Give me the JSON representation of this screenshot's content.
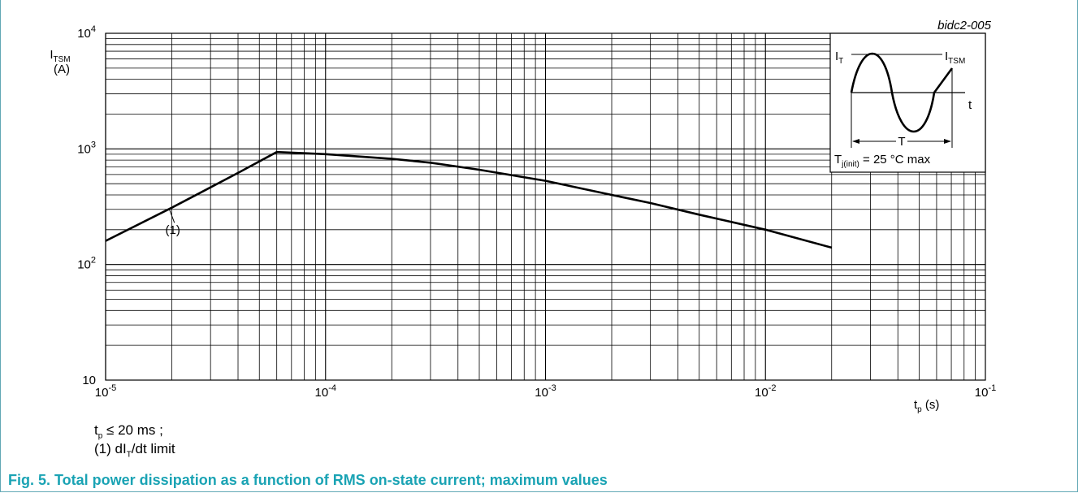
{
  "chart_data": {
    "type": "line",
    "figure_code": "bidc2-005",
    "title": "",
    "xlabel": "t",
    "xlabel_sub": "p",
    "xlabel_unit": " (s)",
    "ylabel": "I",
    "ylabel_sub": "TSM",
    "ylabel_unit": "(A)",
    "xscale": "log",
    "yscale": "log",
    "xlim": [
      1e-05,
      0.1
    ],
    "ylim": [
      10,
      10000
    ],
    "grid": true,
    "x_ticks": [
      {
        "base": "10",
        "exp": "-5"
      },
      {
        "base": "10",
        "exp": "-4"
      },
      {
        "base": "10",
        "exp": "-3"
      },
      {
        "base": "10",
        "exp": "-2"
      },
      {
        "base": "10",
        "exp": "-1"
      }
    ],
    "y_ticks": [
      {
        "base": "10",
        "exp": ""
      },
      {
        "base": "10",
        "exp": "2"
      },
      {
        "base": "10",
        "exp": "3"
      },
      {
        "base": "10",
        "exp": "4"
      }
    ],
    "series": [
      {
        "label": "(1)",
        "x": [
          1e-05,
          2e-05,
          4e-05,
          6e-05,
          0.0001,
          0.0002,
          0.0003,
          0.0005,
          0.001,
          0.002,
          0.003,
          0.005,
          0.01,
          0.02
        ],
        "y": [
          160,
          310,
          620,
          940,
          900,
          820,
          760,
          660,
          530,
          400,
          340,
          270,
          200,
          140
        ]
      }
    ],
    "annotation_label_x": 2.2e-05,
    "annotation_label_y": 230,
    "inset": {
      "label_left": "I",
      "label_left_sub": "T",
      "label_right": "I",
      "label_right_sub": "TSM",
      "time_label": "t",
      "period_label": "T",
      "temp_main": "T",
      "temp_sub": "j(init)",
      "temp_rest": " = 25 °C max"
    }
  },
  "notes": {
    "line1_main": "t",
    "line1_sub": "p",
    "line1_rest": " ≤ 20 ms ;",
    "line2_main": "(1) dI",
    "line2_sub": "T",
    "line2_rest": "/dt limit"
  },
  "caption": "Fig. 5. Total power dissipation as a function of RMS on-state current; maximum values"
}
